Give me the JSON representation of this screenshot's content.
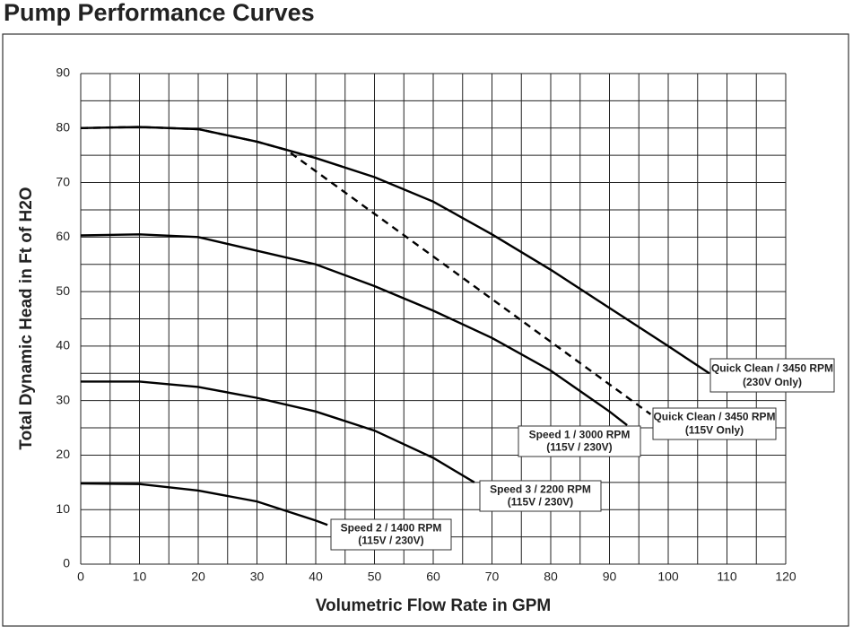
{
  "chart_data": {
    "type": "line",
    "title": "Pump Performance Curves",
    "xlabel": "Volumetric Flow Rate in GPM",
    "ylabel": "Total Dynamic Head in Ft of H2O",
    "xlim": [
      0,
      120
    ],
    "ylim": [
      0,
      90
    ],
    "xticks": [
      0,
      10,
      20,
      30,
      40,
      50,
      60,
      70,
      80,
      90,
      100,
      110,
      120
    ],
    "yticks": [
      0,
      10,
      20,
      30,
      40,
      50,
      60,
      70,
      80,
      90
    ],
    "xminorticks": [
      5,
      15,
      25,
      35,
      45,
      55,
      65,
      75,
      85,
      95,
      105,
      115
    ],
    "yminorticks": [
      5,
      15,
      25,
      35,
      45,
      55,
      65,
      75,
      85
    ],
    "grid": true,
    "series": [
      {
        "name": "Quick Clean / 3450 RPM",
        "note": "(230V Only)",
        "color": "#000000",
        "dash": false,
        "x": [
          0,
          10,
          20,
          30,
          40,
          50,
          60,
          70,
          80,
          90,
          100,
          107
        ],
        "values": [
          80,
          80.2,
          79.8,
          77.5,
          74.5,
          71,
          66.5,
          60.5,
          54,
          47,
          40,
          35
        ]
      },
      {
        "name": "Quick Clean / 3450 RPM",
        "note": "(115V Only)",
        "color": "#000000",
        "dash": true,
        "x": [
          0,
          10,
          20,
          30,
          35,
          97
        ],
        "values": [
          80,
          80.2,
          79.8,
          77.5,
          76,
          27.5
        ]
      },
      {
        "name": "Speed 1 / 3000 RPM",
        "note": "(115V / 230V)",
        "color": "#000000",
        "dash": false,
        "x": [
          0,
          10,
          20,
          30,
          40,
          50,
          60,
          70,
          80,
          90,
          93
        ],
        "values": [
          60.3,
          60.5,
          60,
          57.5,
          55,
          51,
          46.5,
          41.5,
          35.5,
          28,
          25.5
        ]
      },
      {
        "name": "Speed 3 / 2200 RPM",
        "note": "(115V / 230V)",
        "color": "#000000",
        "dash": false,
        "x": [
          0,
          10,
          20,
          30,
          40,
          50,
          60,
          67
        ],
        "values": [
          33.5,
          33.5,
          32.5,
          30.5,
          28,
          24.5,
          19.5,
          15
        ]
      },
      {
        "name": "Speed 2 / 1400 RPM",
        "note": "(115V / 230V)",
        "color": "#000000",
        "dash": false,
        "x": [
          0,
          10,
          20,
          30,
          40,
          42
        ],
        "values": [
          14.8,
          14.7,
          13.5,
          11.5,
          8,
          7.2
        ]
      }
    ]
  }
}
